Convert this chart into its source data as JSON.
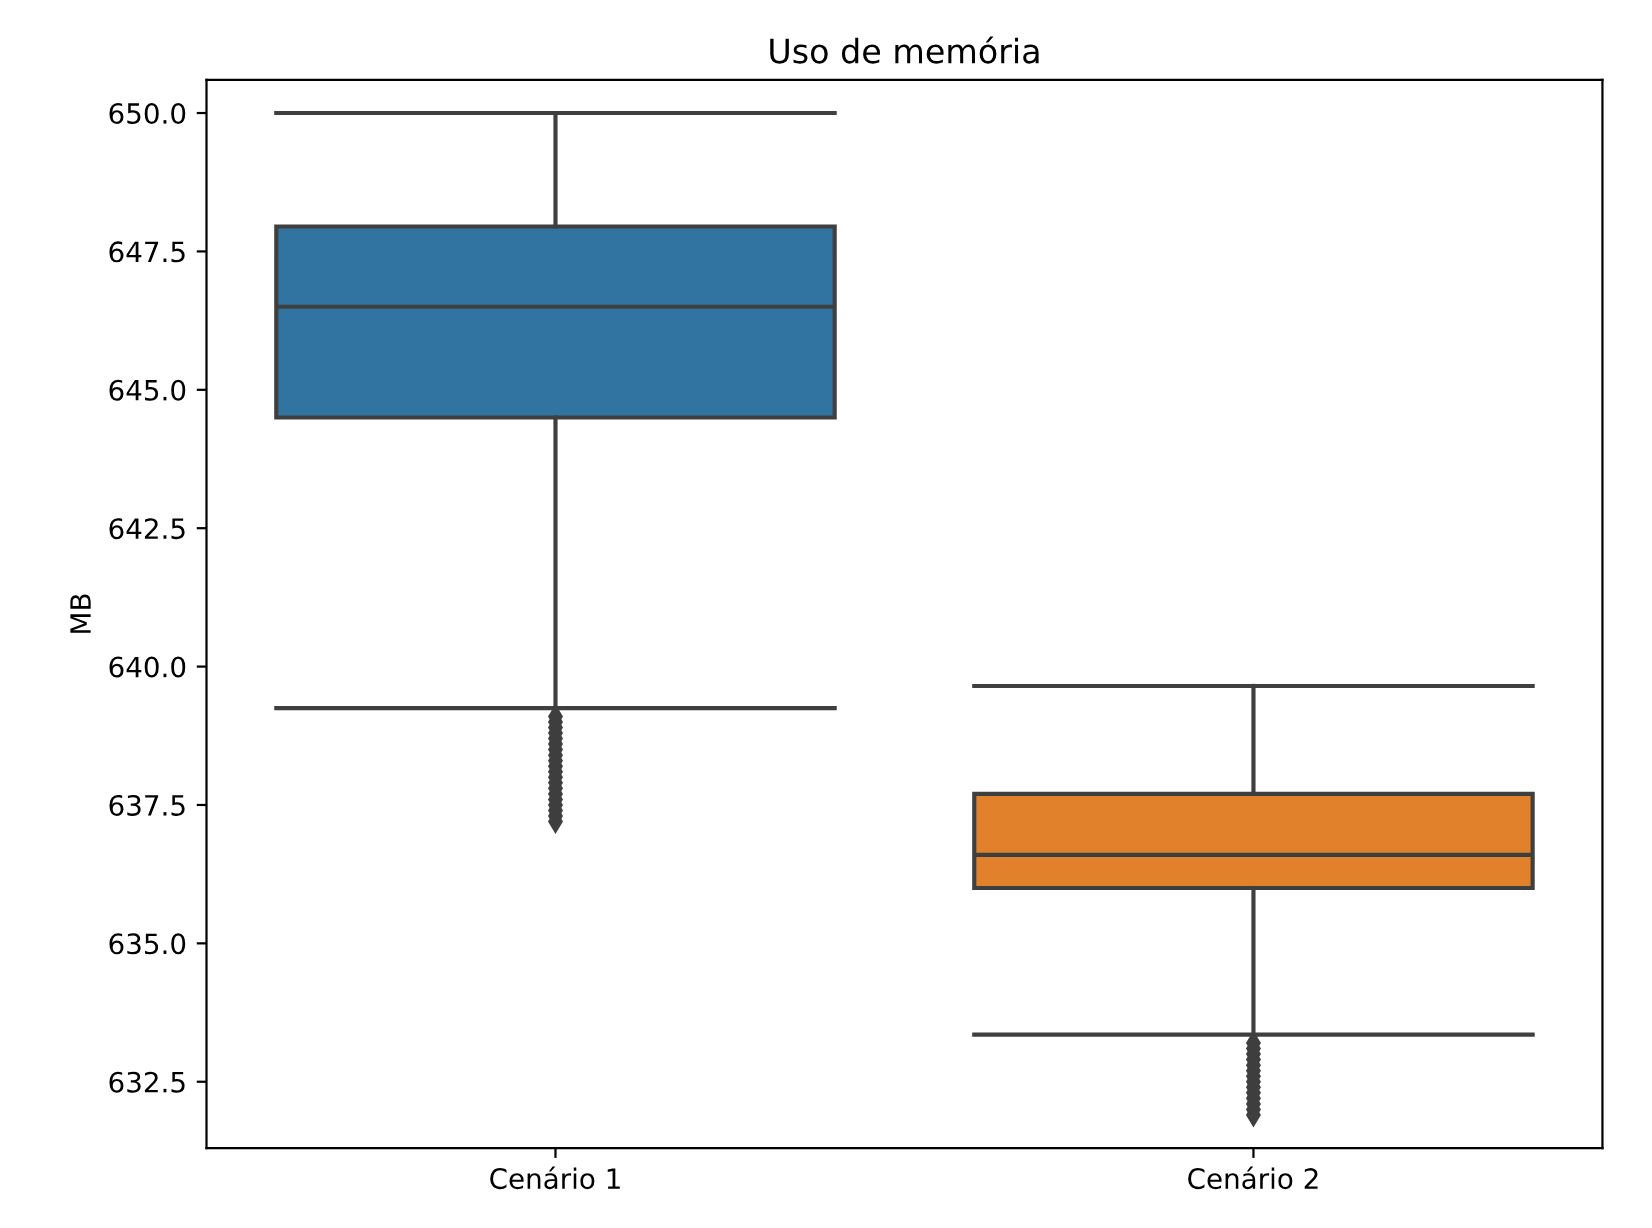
{
  "chart_data": {
    "type": "box",
    "title": "Uso de memória",
    "ylabel": "MB",
    "categories": [
      "Cenário 1",
      "Cenário 2"
    ],
    "colors": [
      "#3274a1",
      "#e1812c"
    ],
    "boxes": [
      {
        "low": 639.25,
        "q1": 644.5,
        "median": 646.5,
        "q3": 647.95,
        "high": 650.0,
        "outliers": [
          639.1,
          639.0,
          638.9,
          638.8,
          638.7,
          638.6,
          638.5,
          638.4,
          638.3,
          638.2,
          638.1,
          638.0,
          637.9,
          637.8,
          637.7,
          637.6,
          637.5,
          637.4,
          637.3,
          637.2
        ]
      },
      {
        "low": 633.35,
        "q1": 636.0,
        "median": 636.6,
        "q3": 637.7,
        "high": 639.65,
        "outliers": [
          633.2,
          633.1,
          633.0,
          632.9,
          632.8,
          632.7,
          632.6,
          632.5,
          632.4,
          632.3,
          632.2,
          632.1,
          632.0,
          631.9
        ]
      }
    ],
    "ylim": [
      631.3,
      650.6
    ],
    "yticks": [
      {
        "value": 632.5,
        "label": "632.5"
      },
      {
        "value": 635,
        "label": "635.0"
      },
      {
        "value": 637.5,
        "label": "637.5"
      },
      {
        "value": 640,
        "label": "640.0"
      },
      {
        "value": 642.5,
        "label": "642.5"
      },
      {
        "value": 645,
        "label": "645.0"
      },
      {
        "value": 647.5,
        "label": "647.5"
      },
      {
        "value": 650,
        "label": "650.0"
      }
    ],
    "grid": false
  }
}
